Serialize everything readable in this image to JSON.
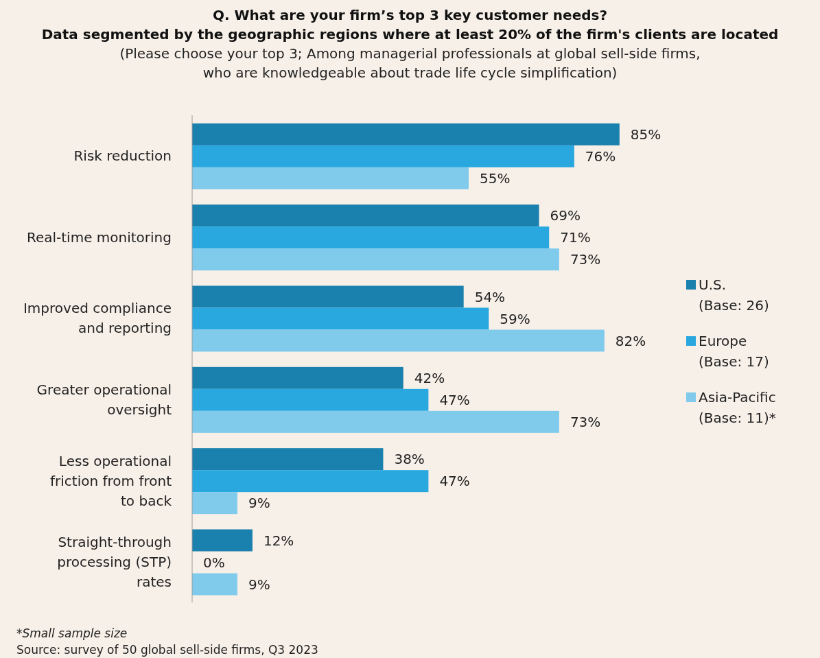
{
  "chart_data": {
    "type": "bar",
    "orientation": "horizontal",
    "title": "Q. What are your firm’s top 3 key customer needs?\nData segmented by the geographic regions where at least 20% of the firm's clients are located",
    "subtitle": "(Please choose your top 3;  Among managerial professionals at global sell-side firms,\nwho are knowledgeable about trade life cycle simplification)",
    "categories": [
      "Risk reduction",
      "Real-time monitoring",
      "Improved compliance and reporting",
      "Greater operational oversight",
      "Less operational friction from front to back",
      "Straight-through processing (STP) rates"
    ],
    "series": [
      {
        "name": "U.S. (Base: 26)",
        "color": "#1a80ad",
        "values": [
          85,
          69,
          54,
          42,
          38,
          12
        ],
        "value_labels": [
          "85%",
          "69%",
          "54%",
          "42%",
          "38%",
          "12%"
        ]
      },
      {
        "name": "Europe (Base: 17)",
        "color": "#29a8e0",
        "values": [
          76,
          71,
          59,
          47,
          47,
          0
        ],
        "value_labels": [
          "76%",
          "71%",
          "59%",
          "47%",
          "47%",
          "0%"
        ]
      },
      {
        "name": "Asia-Pacific (Base: 11)*",
        "color": "#80cbec",
        "values": [
          55,
          73,
          82,
          73,
          9,
          9
        ],
        "value_labels": [
          "55%",
          "73%",
          "82%",
          "73%",
          "9%",
          "9%"
        ]
      }
    ],
    "legend": "right",
    "grid": false,
    "annotations": [
      "*Small sample size",
      "Source: survey of 50 global sell-side firms, Q3 2023"
    ]
  }
}
